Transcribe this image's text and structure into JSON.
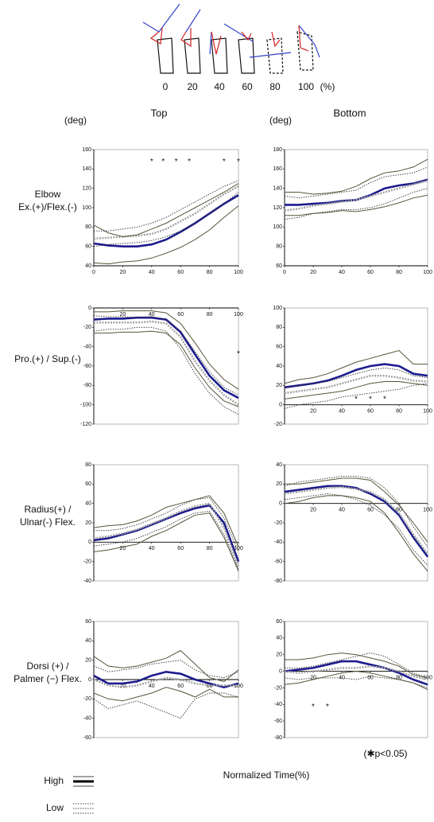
{
  "figure": {
    "phase_labels": [
      0,
      20,
      40,
      60,
      80,
      100
    ],
    "phase_unit": "(%)"
  },
  "xlabel": "Normalized Time(%)",
  "note": "(✱p<0.05)",
  "legend": [
    {
      "label": "High",
      "style": "solid"
    },
    {
      "label": "Low",
      "style": "dotted"
    }
  ],
  "chart_data": [
    {
      "type": "line",
      "title": "Top",
      "yunit": "(deg)",
      "ylabel": [
        "Elbow",
        "Ex.(+)/Flex.(-)"
      ],
      "x": [
        0,
        10,
        20,
        30,
        40,
        50,
        60,
        70,
        80,
        90,
        100
      ],
      "xlim": [
        0,
        100
      ],
      "xticks": [
        0,
        20,
        40,
        60,
        80,
        100
      ],
      "ylim": [
        40,
        160
      ],
      "yticks": [
        40,
        60,
        80,
        100,
        120,
        140,
        160
      ],
      "series": [
        {
          "color": "#1c1c8e",
          "style": "thick",
          "values": [
            63,
            61,
            60,
            60,
            62,
            67,
            75,
            84,
            94,
            104,
            113
          ]
        },
        {
          "color": "#a0a0a0",
          "style": "thickdot",
          "values": [
            68,
            69,
            70,
            71,
            73,
            78,
            86,
            94,
            104,
            114,
            122
          ]
        },
        {
          "color": "#55553a",
          "style": "thin",
          "values": [
            82,
            74,
            70,
            72,
            78,
            84,
            92,
            100,
            108,
            116,
            125
          ]
        },
        {
          "color": "#55553a",
          "style": "thin",
          "values": [
            43,
            42,
            44,
            45,
            48,
            53,
            59,
            67,
            77,
            90,
            102
          ]
        },
        {
          "color": "#333333",
          "style": "dotted",
          "values": [
            76,
            76,
            78,
            80,
            84,
            90,
            98,
            106,
            114,
            122,
            128
          ]
        },
        {
          "color": "#333333",
          "style": "dotted",
          "values": [
            60,
            62,
            63,
            64,
            66,
            70,
            76,
            84,
            94,
            104,
            116
          ]
        }
      ],
      "sig": {
        "label": "*",
        "x": [
          40,
          48,
          57,
          66,
          90,
          100
        ],
        "y": 150
      }
    },
    {
      "type": "line",
      "title": "Bottom",
      "yunit": "(deg)",
      "x": [
        0,
        10,
        20,
        30,
        40,
        50,
        60,
        70,
        80,
        90,
        100
      ],
      "xlim": [
        0,
        100
      ],
      "xticks": [
        0,
        20,
        40,
        60,
        80,
        100
      ],
      "ylim": [
        60,
        180
      ],
      "yticks": [
        60,
        80,
        100,
        120,
        140,
        160,
        180
      ],
      "series": [
        {
          "color": "#1c1c8e",
          "style": "thick",
          "values": [
            123,
            123,
            124,
            125,
            127,
            128,
            133,
            140,
            143,
            145,
            149
          ]
        },
        {
          "color": "#a0a0a0",
          "style": "thickdot",
          "values": [
            117,
            119,
            122,
            124,
            126,
            128,
            132,
            136,
            140,
            144,
            148
          ]
        },
        {
          "color": "#55553a",
          "style": "thin",
          "values": [
            136,
            136,
            134,
            135,
            137,
            142,
            150,
            156,
            158,
            162,
            170
          ]
        },
        {
          "color": "#55553a",
          "style": "thin",
          "values": [
            112,
            112,
            114,
            115,
            117,
            116,
            118,
            121,
            125,
            130,
            133
          ]
        },
        {
          "color": "#333333",
          "style": "dotted",
          "values": [
            132,
            130,
            132,
            134,
            136,
            138,
            146,
            152,
            154,
            156,
            162
          ]
        },
        {
          "color": "#333333",
          "style": "dotted",
          "values": [
            108,
            110,
            114,
            116,
            118,
            118,
            120,
            124,
            130,
            136,
            140
          ]
        }
      ]
    },
    {
      "type": "line",
      "ylabel": [
        "Pro.(+) / Sup.(-)"
      ],
      "x": [
        0,
        10,
        20,
        30,
        40,
        50,
        60,
        70,
        80,
        90,
        100
      ],
      "xlim": [
        0,
        100
      ],
      "xticks": [
        20,
        40,
        60,
        80,
        100
      ],
      "ylim": [
        -120,
        0
      ],
      "yticks": [
        -120,
        -100,
        -80,
        -60,
        -40,
        -20,
        0
      ],
      "series": [
        {
          "color": "#1c1c8e",
          "style": "thick",
          "values": [
            -12,
            -11,
            -11,
            -10,
            -10,
            -12,
            -25,
            -48,
            -70,
            -85,
            -93
          ]
        },
        {
          "color": "#a0a0a0",
          "style": "thickdot",
          "values": [
            -15,
            -15,
            -15,
            -15,
            -14,
            -16,
            -30,
            -55,
            -75,
            -90,
            -100
          ]
        },
        {
          "color": "#55553a",
          "style": "thin",
          "values": [
            -4,
            -4,
            -3,
            -3,
            -3,
            -5,
            -16,
            -36,
            -58,
            -74,
            -84
          ]
        },
        {
          "color": "#55553a",
          "style": "thin",
          "values": [
            -26,
            -26,
            -25,
            -25,
            -24,
            -26,
            -38,
            -62,
            -82,
            -96,
            -102
          ]
        },
        {
          "color": "#333333",
          "style": "dotted",
          "values": [
            -8,
            -9,
            -9,
            -10,
            -9,
            -12,
            -24,
            -45,
            -66,
            -82,
            -90
          ]
        },
        {
          "color": "#333333",
          "style": "dotted",
          "values": [
            -24,
            -22,
            -22,
            -20,
            -20,
            -24,
            -42,
            -68,
            -88,
            -102,
            -110
          ]
        }
      ],
      "sig": {
        "label": "*",
        "x": [
          100
        ],
        "y": -45
      }
    },
    {
      "type": "line",
      "x": [
        0,
        10,
        20,
        30,
        40,
        50,
        60,
        70,
        80,
        90,
        100
      ],
      "xlim": [
        0,
        100
      ],
      "xticks": [
        20,
        40,
        60,
        80,
        100
      ],
      "ylim": [
        -20,
        100
      ],
      "yticks": [
        -20,
        0,
        20,
        40,
        60,
        80,
        100
      ],
      "series": [
        {
          "color": "#1c1c8e",
          "style": "thick",
          "values": [
            18,
            20,
            22,
            25,
            30,
            36,
            40,
            42,
            40,
            32,
            30
          ]
        },
        {
          "color": "#a0a0a0",
          "style": "thickdot",
          "values": [
            12,
            14,
            16,
            18,
            22,
            26,
            30,
            30,
            28,
            25,
            24
          ]
        },
        {
          "color": "#55553a",
          "style": "thin",
          "values": [
            22,
            26,
            28,
            32,
            38,
            44,
            48,
            52,
            56,
            42,
            42
          ]
        },
        {
          "color": "#55553a",
          "style": "thin",
          "values": [
            6,
            8,
            10,
            12,
            14,
            18,
            22,
            24,
            24,
            22,
            20
          ]
        },
        {
          "color": "#333333",
          "style": "dotted",
          "values": [
            18,
            20,
            22,
            24,
            28,
            32,
            36,
            38,
            36,
            30,
            28
          ]
        },
        {
          "color": "#333333",
          "style": "dotted",
          "values": [
            -4,
            0,
            2,
            4,
            8,
            10,
            12,
            14,
            16,
            20,
            22
          ]
        }
      ],
      "sig": {
        "label": "*",
        "x": [
          50,
          60,
          70
        ],
        "y": 8
      }
    },
    {
      "type": "line",
      "ylabel": [
        "Radius(+) /",
        "Ulnar(-) Flex."
      ],
      "x": [
        0,
        10,
        20,
        30,
        40,
        50,
        60,
        70,
        80,
        90,
        100
      ],
      "xlim": [
        0,
        100
      ],
      "xticks": [
        20,
        40,
        60,
        80,
        100
      ],
      "ylim": [
        -40,
        80
      ],
      "yticks": [
        -40,
        -20,
        0,
        20,
        40,
        60,
        80
      ],
      "series": [
        {
          "color": "#1c1c8e",
          "style": "thick",
          "values": [
            2,
            4,
            8,
            12,
            18,
            24,
            30,
            35,
            38,
            20,
            -20
          ]
        },
        {
          "color": "#a0a0a0",
          "style": "thickdot",
          "values": [
            4,
            6,
            9,
            13,
            19,
            25,
            32,
            37,
            40,
            15,
            -25
          ]
        },
        {
          "color": "#55553a",
          "style": "thin",
          "values": [
            15,
            17,
            18,
            22,
            28,
            36,
            40,
            44,
            48,
            30,
            -5
          ]
        },
        {
          "color": "#55553a",
          "style": "thin",
          "values": [
            -10,
            -8,
            -5,
            -2,
            6,
            12,
            20,
            28,
            30,
            5,
            -30
          ]
        },
        {
          "color": "#333333",
          "style": "dotted",
          "values": [
            12,
            12,
            14,
            18,
            24,
            30,
            38,
            44,
            46,
            25,
            -10
          ]
        },
        {
          "color": "#333333",
          "style": "dotted",
          "values": [
            -4,
            -2,
            0,
            4,
            10,
            16,
            24,
            30,
            32,
            8,
            -28
          ]
        }
      ]
    },
    {
      "type": "line",
      "x": [
        0,
        10,
        20,
        30,
        40,
        50,
        60,
        70,
        80,
        90,
        100
      ],
      "xlim": [
        0,
        100
      ],
      "xticks": [
        20,
        40,
        60,
        80,
        100
      ],
      "ylim": [
        -80,
        40
      ],
      "yticks": [
        -80,
        -60,
        -40,
        -20,
        0,
        20,
        40
      ],
      "series": [
        {
          "color": "#1c1c8e",
          "style": "thick",
          "values": [
            12,
            14,
            16,
            18,
            18,
            16,
            10,
            2,
            -12,
            -35,
            -55
          ]
        },
        {
          "color": "#a0a0a0",
          "style": "thickdot",
          "values": [
            10,
            12,
            14,
            16,
            17,
            15,
            12,
            4,
            -10,
            -32,
            -52
          ]
        },
        {
          "color": "#55553a",
          "style": "thin",
          "values": [
            20,
            20,
            22,
            24,
            26,
            26,
            24,
            12,
            -2,
            -20,
            -40
          ]
        },
        {
          "color": "#55553a",
          "style": "thin",
          "values": [
            0,
            2,
            6,
            8,
            8,
            6,
            2,
            -10,
            -30,
            -52,
            -70
          ]
        },
        {
          "color": "#333333",
          "style": "dotted",
          "values": [
            18,
            22,
            24,
            26,
            28,
            28,
            26,
            16,
            0,
            -24,
            -45
          ]
        },
        {
          "color": "#333333",
          "style": "dotted",
          "values": [
            4,
            6,
            8,
            10,
            8,
            4,
            -2,
            -12,
            -26,
            -48,
            -64
          ]
        }
      ]
    },
    {
      "type": "line",
      "ylabel": [
        "Dorsi (+) /",
        "Palmer (−) Flex."
      ],
      "x": [
        0,
        10,
        20,
        30,
        40,
        50,
        60,
        70,
        80,
        90,
        100
      ],
      "xlim": [
        0,
        100
      ],
      "xticks": [
        20,
        40,
        60,
        80,
        100
      ],
      "ylim": [
        -60,
        60
      ],
      "yticks": [
        -60,
        -40,
        -20,
        0,
        20,
        40,
        60
      ],
      "series": [
        {
          "color": "#1c1c8e",
          "style": "thick",
          "values": [
            4,
            -4,
            -4,
            -2,
            4,
            8,
            6,
            0,
            -4,
            -8,
            -4
          ]
        },
        {
          "color": "#a0a0a0",
          "style": "thickdot",
          "values": [
            0,
            -6,
            -8,
            -6,
            -2,
            2,
            0,
            -4,
            -6,
            -6,
            -6
          ]
        },
        {
          "color": "#55553a",
          "style": "thin",
          "values": [
            24,
            14,
            12,
            14,
            18,
            22,
            30,
            16,
            2,
            -2,
            10
          ]
        },
        {
          "color": "#55553a",
          "style": "thin",
          "values": [
            -14,
            -20,
            -22,
            -18,
            -14,
            -8,
            -12,
            -18,
            -10,
            -18,
            -18
          ]
        },
        {
          "color": "#333333",
          "style": "dotted",
          "values": [
            14,
            8,
            10,
            12,
            16,
            18,
            20,
            10,
            4,
            2,
            8
          ]
        },
        {
          "color": "#333333",
          "style": "dotted",
          "values": [
            -20,
            -30,
            -26,
            -22,
            -28,
            -34,
            -40,
            -20,
            -14,
            -14,
            -18
          ]
        }
      ]
    },
    {
      "type": "line",
      "x": [
        0,
        10,
        20,
        30,
        40,
        50,
        60,
        70,
        80,
        90,
        100
      ],
      "xlim": [
        0,
        100
      ],
      "xticks": [
        20,
        40,
        60,
        80,
        100
      ],
      "ylim": [
        -80,
        60
      ],
      "yticks": [
        -80,
        -60,
        -40,
        -20,
        0,
        20,
        40,
        60
      ],
      "series": [
        {
          "color": "#1c1c8e",
          "style": "thick",
          "values": [
            0,
            2,
            4,
            8,
            12,
            12,
            8,
            4,
            -2,
            -10,
            -16
          ]
        },
        {
          "color": "#a0a0a0",
          "style": "thickdot",
          "values": [
            0,
            -2,
            0,
            2,
            4,
            4,
            6,
            4,
            0,
            -6,
            -10
          ]
        },
        {
          "color": "#55553a",
          "style": "thin",
          "values": [
            14,
            14,
            16,
            20,
            22,
            20,
            16,
            12,
            6,
            -4,
            -8
          ]
        },
        {
          "color": "#55553a",
          "style": "thin",
          "values": [
            -16,
            -14,
            -10,
            -6,
            -2,
            0,
            -2,
            -6,
            -10,
            -14,
            -22
          ]
        },
        {
          "color": "#333333",
          "style": "dotted",
          "values": [
            4,
            4,
            6,
            10,
            14,
            18,
            22,
            18,
            8,
            -2,
            -8
          ]
        },
        {
          "color": "#333333",
          "style": "dotted",
          "values": [
            -8,
            -10,
            -8,
            -8,
            -8,
            -10,
            -6,
            -8,
            -10,
            -14,
            -20
          ]
        }
      ],
      "sig": {
        "label": "*",
        "x": [
          20,
          30
        ],
        "y": -40
      }
    }
  ]
}
